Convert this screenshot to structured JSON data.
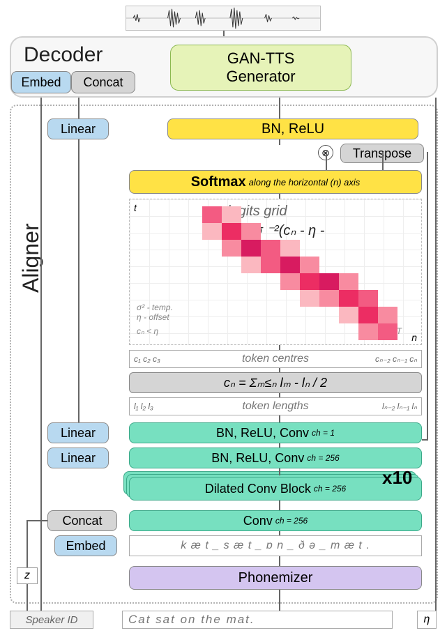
{
  "waveform": {
    "bg": "#f5f5f5",
    "stroke": "#222222"
  },
  "decoder": {
    "title": "Decoder",
    "embed": "Embed",
    "concat": "Concat",
    "gan": "GAN-TTS\nGenerator"
  },
  "aligner": {
    "label": "Aligner",
    "linear": "Linear",
    "bnrelu": "BN, ReLU",
    "transpose": "Transpose",
    "otimes": "⊗",
    "softmax_main": "Softmax",
    "softmax_sub": "along the horizontal (n) axis",
    "logits_title": "logits grid",
    "logits_eq_line1": "xₙₜ = - σ ⁻²(cₙ - η -",
    "logits_eq_line2": "t)²",
    "ann_sigma": "σ² - temp.",
    "ann_eta": "η - offset",
    "ann_cn_lt": "cₙ < η",
    "ann_cn_gt": "cₙ > η + T",
    "axis_t": "t",
    "axis_n": "n",
    "heatmap_colors": [
      "#fde2e4",
      "#fbb8c0",
      "#f88ba0",
      "#f35b82",
      "#ec2d63",
      "#d81b60"
    ],
    "token_centres_label": "token centres",
    "tc_left": "c₁  c₂  c₃",
    "tc_right": "cₙ₋₂ cₙ₋₁ cₙ",
    "cn_formula": "cₙ = Σₘ≤ₙ lₘ - lₙ / 2",
    "token_lengths_label": "token lengths",
    "tl_left": "l₁  l₂  l₃",
    "tl_right": "lₙ₋₂ lₙ₋₁ lₙ",
    "bn_conv1": "BN, ReLU, Conv",
    "ch1": "ch = 1",
    "bn_conv256": "BN, ReLU, Conv",
    "ch256": "ch = 256",
    "dilated": "Dilated Conv Block",
    "x10": "x10",
    "concat": "Concat",
    "conv": "Conv",
    "embed": "Embed",
    "phon_text": "k æ t _ s æ t _ ɒ n _ ð ə _ m æ t .",
    "phonemizer": "Phonemizer",
    "z": "z",
    "speaker": "Speaker ID",
    "input_text": "Cat sat on the mat.",
    "eta": "η"
  },
  "colors": {
    "blue": "#b8d9f0",
    "gray": "#d5d5d5",
    "yellow": "#ffe245",
    "teal": "#77e0c0",
    "purple": "#d4c5f0",
    "green_border": "#8bb850",
    "gan_bg": "#e6f3b8"
  },
  "typography": {
    "title_size": 30,
    "block_size": 18,
    "small_italic": 14
  }
}
